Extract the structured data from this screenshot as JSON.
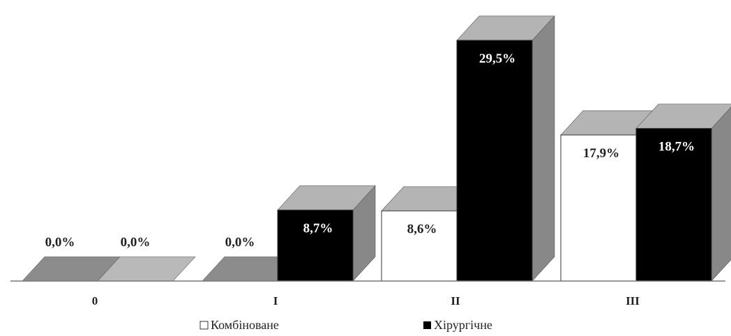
{
  "chart_data": {
    "type": "bar",
    "style": "3d-clustered",
    "categories": [
      "0",
      "I",
      "II",
      "III"
    ],
    "series": [
      {
        "name": "Комбіноване",
        "color": "#ffffff",
        "values": [
          0.0,
          0.0,
          8.6,
          17.9
        ],
        "labels": [
          "0,0%",
          "0,0%",
          "8,6%",
          "17,9%"
        ]
      },
      {
        "name": "Хірургічне",
        "color": "#000000",
        "values": [
          0.0,
          8.7,
          29.5,
          18.7
        ],
        "labels": [
          "0,0%",
          "8,7%",
          "29,5%",
          "18,7%"
        ]
      }
    ],
    "ylim": [
      0,
      30
    ],
    "grid": false,
    "legend_position": "bottom",
    "colors": {
      "side": "#888888",
      "top": "#b4b4b4",
      "zero_top_first": "#8c8c8c",
      "zero_top_second": "#b9b9b9",
      "axis": "#777777",
      "label_dark": "#222222",
      "label_light": "#ffffff"
    }
  }
}
